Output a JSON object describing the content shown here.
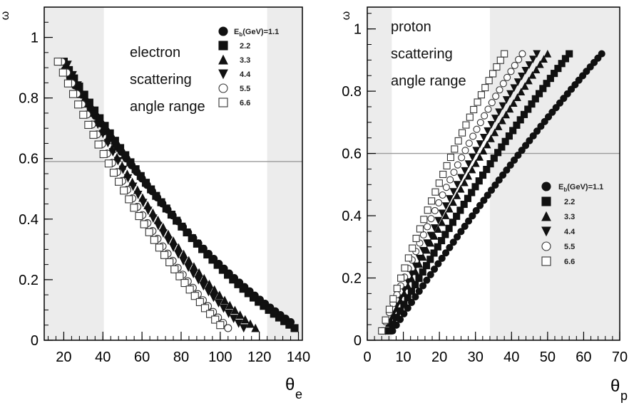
{
  "colors": {
    "frame": "#000000",
    "shade": "#ececec",
    "refline": "#9a9a9a",
    "dark": "#111111",
    "mid": "#555555",
    "light": "#999999"
  },
  "chart_data": [
    {
      "type": "scatter",
      "title": "",
      "xlabel": "θ",
      "xlabel_sub": "e",
      "ylabel": "ω",
      "xlim": [
        10,
        142
      ],
      "ylim": [
        0,
        1.1
      ],
      "xticks": [
        20,
        40,
        60,
        80,
        100,
        120,
        140
      ],
      "yticks": [
        0,
        0.2,
        0.4,
        0.6,
        0.8,
        1
      ],
      "ytick_labels": [
        "0",
        "0.2",
        "0.4",
        "0.6",
        "0.8",
        "1"
      ],
      "shaded_x_ranges": [
        [
          10,
          40.5
        ],
        [
          124,
          142
        ]
      ],
      "hline": 0.59,
      "annotation": [
        "electron",
        "scattering",
        "angle range"
      ],
      "legend_position": "top-right",
      "series": [
        {
          "name": "E_b(GeV)=1.1",
          "marker": "circle",
          "style": "filled",
          "x_range": [
            18,
            136
          ],
          "y0": 0.92,
          "y1": 0.06,
          "curv": 0.35
        },
        {
          "name": "2.2",
          "marker": "square",
          "style": "filled",
          "x_range": [
            20,
            138
          ],
          "y0": 0.92,
          "y1": 0.04,
          "curv": 0.38
        },
        {
          "name": "3.3",
          "marker": "triangle-up",
          "style": "filled",
          "x_range": [
            21,
            118
          ],
          "y0": 0.91,
          "y1": 0.04,
          "curv": 0.36
        },
        {
          "name": "4.4",
          "marker": "triangle-down",
          "style": "filled",
          "x_range": [
            22,
            112
          ],
          "y0": 0.91,
          "y1": 0.04,
          "curv": 0.34
        },
        {
          "name": "5.5",
          "marker": "circle",
          "style": "open",
          "x_range": [
            19,
            104
          ],
          "y0": 0.92,
          "y1": 0.04,
          "curv": 0.32
        },
        {
          "name": "6.6",
          "marker": "square",
          "style": "open",
          "x_range": [
            17,
            100
          ],
          "y0": 0.92,
          "y1": 0.05,
          "curv": 0.3
        }
      ]
    },
    {
      "type": "scatter",
      "title": "",
      "xlabel": "θ",
      "xlabel_sub": "p",
      "ylabel": "ω",
      "xlim": [
        0,
        70
      ],
      "ylim": [
        0,
        1.07
      ],
      "xticks": [
        0,
        10,
        20,
        30,
        40,
        50,
        60,
        70
      ],
      "yticks": [
        0,
        0.2,
        0.4,
        0.6,
        0.8,
        1
      ],
      "ytick_labels": [
        "0",
        "0.2",
        "0.4",
        "0.6",
        "0.8",
        "1"
      ],
      "shaded_x_ranges": [
        [
          0,
          6.8
        ],
        [
          34,
          70
        ]
      ],
      "hline": 0.6,
      "annotation": [
        "proton",
        "scattering",
        "angle range"
      ],
      "legend_position": "right",
      "series": [
        {
          "name": "E_b(GeV)=1.1",
          "marker": "circle",
          "style": "filled",
          "x_range": [
            7,
            65
          ],
          "y0": 0.03,
          "y1": 0.92,
          "curv": 0.12
        },
        {
          "name": "2.2",
          "marker": "square",
          "style": "filled",
          "x_range": [
            6,
            56
          ],
          "y0": 0.03,
          "y1": 0.92,
          "curv": 0.14
        },
        {
          "name": "3.3",
          "marker": "triangle-up",
          "style": "filled",
          "x_range": [
            5,
            50
          ],
          "y0": 0.03,
          "y1": 0.92,
          "curv": 0.16
        },
        {
          "name": "4.4",
          "marker": "triangle-down",
          "style": "filled",
          "x_range": [
            5,
            47
          ],
          "y0": 0.03,
          "y1": 0.92,
          "curv": 0.18
        },
        {
          "name": "5.5",
          "marker": "circle",
          "style": "open",
          "x_range": [
            4,
            43
          ],
          "y0": 0.03,
          "y1": 0.92,
          "curv": 0.2
        },
        {
          "name": "6.6",
          "marker": "square",
          "style": "open",
          "x_range": [
            4,
            38
          ],
          "y0": 0.03,
          "y1": 0.92,
          "curv": 0.22
        }
      ]
    }
  ]
}
